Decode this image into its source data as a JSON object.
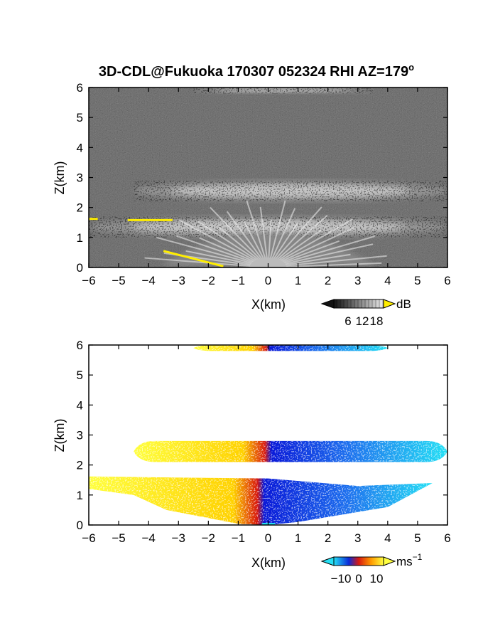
{
  "title": {
    "main": "3D-CDL@Fukuoka 170307 052324 RHI AZ=179",
    "superscript": "o"
  },
  "chart_data": [
    {
      "type": "heatmap",
      "name": "reflectivity",
      "xlabel": "X(km)",
      "ylabel": "Z(km)",
      "xlim": [
        -6,
        6
      ],
      "ylim": [
        0,
        6
      ],
      "xticks": [
        "-6",
        "-5",
        "-4",
        "-3",
        "-2",
        "-1",
        "0",
        "1",
        "2",
        "3",
        "4",
        "5",
        "6"
      ],
      "yticks": [
        "0",
        "1",
        "2",
        "3",
        "4",
        "5",
        "6"
      ],
      "colorbar": {
        "unit": "dB",
        "ticks": [
          "6",
          "12",
          "18"
        ],
        "min": 0,
        "max": 21
      },
      "colors": {
        "background": "#2b2b2b",
        "high": "#ffffff",
        "overflow": "#ffee00"
      },
      "features": [
        {
          "kind": "layer",
          "label": "top cloud",
          "x": [
            -2.5,
            3.5
          ],
          "z": [
            5.8,
            6.0
          ]
        },
        {
          "kind": "layer",
          "label": "mid cloud",
          "x": [
            -4.5,
            6
          ],
          "z": [
            2.2,
            2.9
          ]
        },
        {
          "kind": "layer",
          "label": "lower cloud",
          "x": [
            -6,
            6
          ],
          "z": [
            1.0,
            1.7
          ]
        },
        {
          "kind": "fan",
          "label": "radar beams",
          "origin": [
            0,
            0
          ],
          "x": [
            -3.5,
            3.5
          ],
          "z": [
            0,
            1.4
          ]
        }
      ]
    },
    {
      "type": "heatmap",
      "name": "doppler velocity",
      "xlabel": "X(km)",
      "ylabel": "Z(km)",
      "xlim": [
        -6,
        6
      ],
      "ylim": [
        0,
        6
      ],
      "xticks": [
        "-6",
        "-5",
        "-4",
        "-3",
        "-2",
        "-1",
        "0",
        "1",
        "2",
        "3",
        "4",
        "5",
        "6"
      ],
      "yticks": [
        "0",
        "1",
        "2",
        "3",
        "4",
        "5",
        "6"
      ],
      "colorbar": {
        "unit": "ms",
        "unit_exp": "−1",
        "ticks": [
          "−10",
          "0",
          "10"
        ],
        "min": -14,
        "max": 14
      },
      "colors": {
        "negative_strong": "#0a1ad8",
        "negative_weak": "#25e0f5",
        "zero": "#d81a10",
        "positive": "#ffd200",
        "positive_strong": "#ffff40"
      },
      "features": [
        {
          "kind": "layer",
          "label": "top cloud",
          "x": [
            -2.5,
            4
          ],
          "z": [
            5.8,
            6.0
          ],
          "v_left": 8,
          "v_right": -10
        },
        {
          "kind": "layer",
          "label": "mid cloud",
          "x": [
            -4.5,
            6
          ],
          "z": [
            2.1,
            2.8
          ],
          "v_left": 12,
          "v_right": -12
        },
        {
          "kind": "layer",
          "label": "lower wedge",
          "x": [
            -6,
            6
          ],
          "z": [
            0,
            1.6
          ],
          "v_left": 12,
          "v_right": -10
        }
      ]
    }
  ]
}
